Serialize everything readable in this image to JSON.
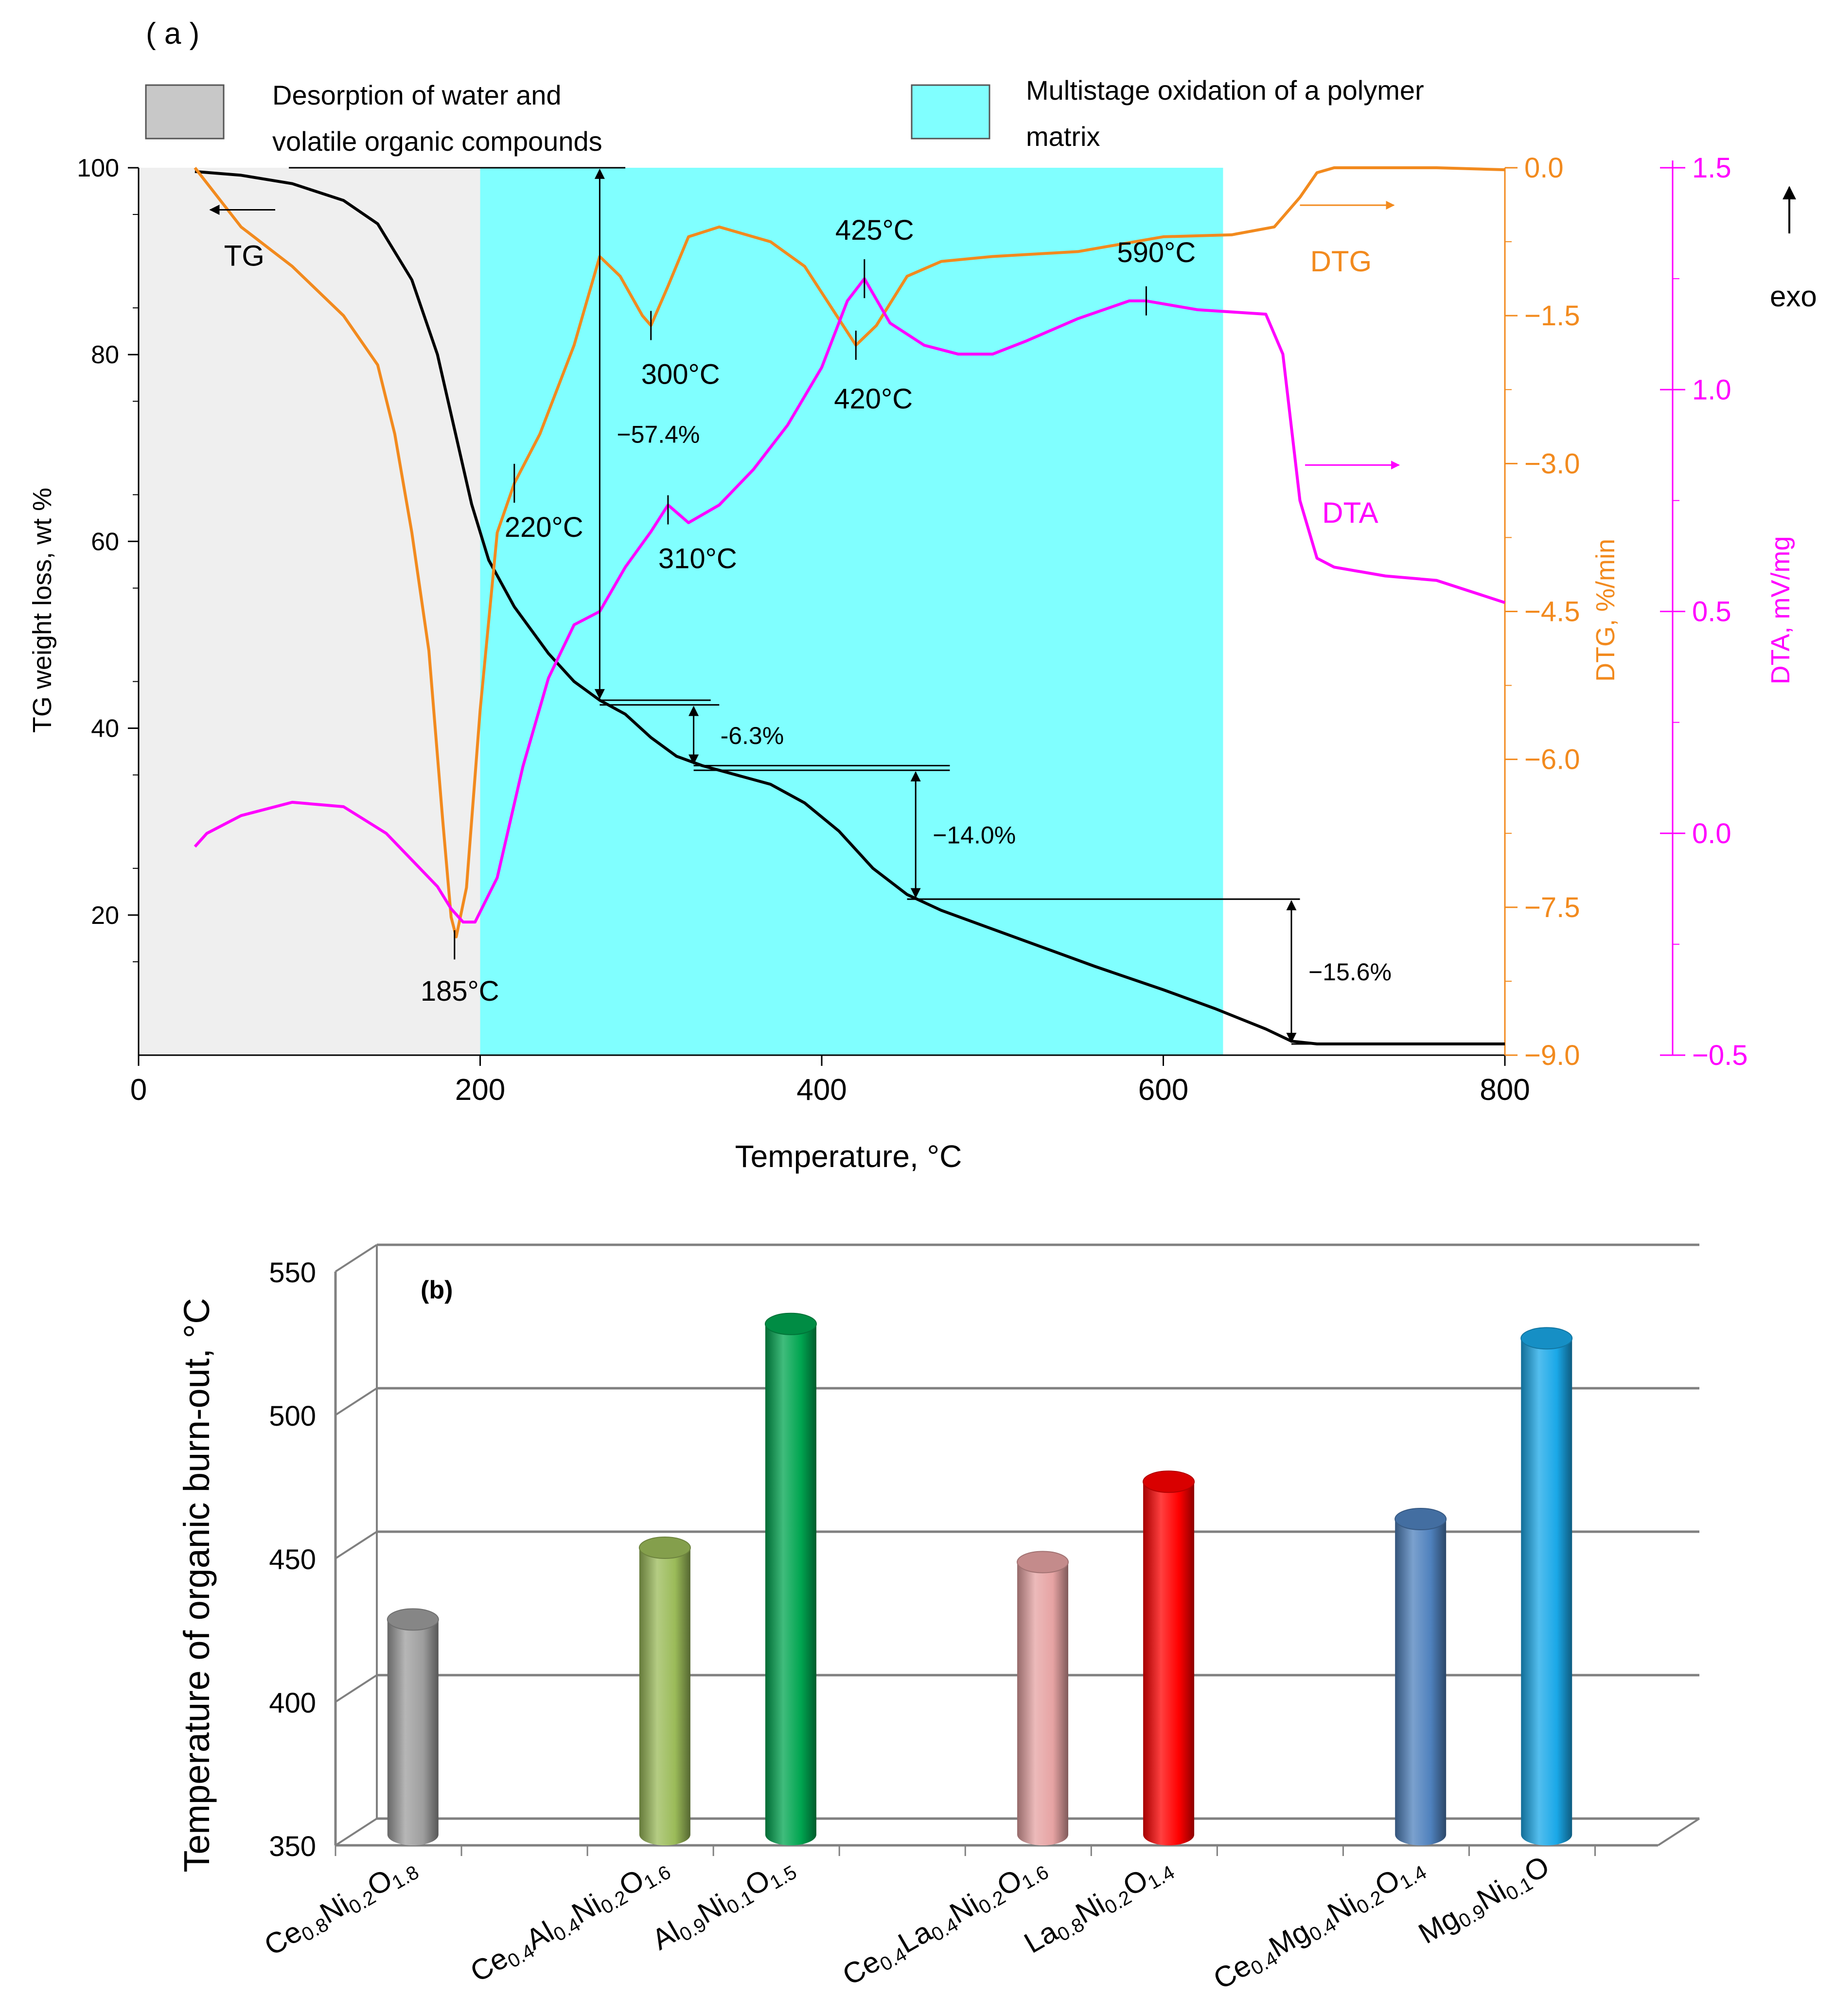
{
  "panel_a": {
    "label": "( a )",
    "legend": [
      {
        "color": "#c8c8c8",
        "line1": "Desorption of water and",
        "line2": "volatile organic compounds"
      },
      {
        "color": "#80ffff",
        "line1": "Multistage oxidation of a polymer",
        "line2": "matrix"
      }
    ],
    "exo_label": "exo"
  },
  "panel_b": {
    "label": "(b)"
  },
  "colors": {
    "tg": "#000000",
    "dtg": "#f28a1e",
    "dta": "#ff00ff",
    "cyan_region": "#80ffff",
    "gray_region": "#efefef"
  },
  "chart_data": [
    {
      "type": "line",
      "title": "( a )",
      "xlabel": "Temperature, °C",
      "xlim": [
        0,
        800
      ],
      "x_ticks": [
        "0",
        "200",
        "400",
        "600",
        "800"
      ],
      "axes": {
        "tg": {
          "label": "TG weight loss, wt %",
          "ylim": [
            5,
            100
          ],
          "ticks": [
            "100",
            "80",
            "60",
            "40",
            "20"
          ]
        },
        "dtg": {
          "label": "DTG, %/min",
          "ylim": [
            -9.0,
            0.0
          ],
          "ticks": [
            "0.0",
            "−1.5",
            "−3.0",
            "−4.5",
            "−6.0",
            "−7.5",
            "−9.0"
          ]
        },
        "dta": {
          "label": "DTA, mV/mg",
          "ylim": [
            -0.5,
            1.5
          ],
          "ticks": [
            "1.5",
            "1.0",
            "0.5",
            "0.0",
            "−0.5"
          ]
        }
      },
      "regions": [
        {
          "name": "Desorption of water and volatile organic compounds",
          "x": [
            0,
            200
          ]
        },
        {
          "name": "Multistage oxidation of a polymer matrix",
          "x": [
            200,
            635
          ]
        }
      ],
      "series": [
        {
          "name": "TG",
          "axis": "tg",
          "label": "TG",
          "points": [
            [
              33,
              99.6
            ],
            [
              60,
              99.2
            ],
            [
              90,
              98.3
            ],
            [
              120,
              96.5
            ],
            [
              140,
              94
            ],
            [
              160,
              88
            ],
            [
              175,
              80
            ],
            [
              185,
              72
            ],
            [
              195,
              64
            ],
            [
              205,
              58
            ],
            [
              220,
              53
            ],
            [
              240,
              48
            ],
            [
              255,
              45
            ],
            [
              270,
              43
            ],
            [
              285,
              41.5
            ],
            [
              300,
              39
            ],
            [
              315,
              37
            ],
            [
              330,
              36
            ],
            [
              350,
              35
            ],
            [
              370,
              34
            ],
            [
              390,
              32
            ],
            [
              410,
              29
            ],
            [
              430,
              25
            ],
            [
              450,
              22.2
            ],
            [
              470,
              20.5
            ],
            [
              500,
              18.5
            ],
            [
              530,
              16.5
            ],
            [
              560,
              14.5
            ],
            [
              600,
              12
            ],
            [
              630,
              10
            ],
            [
              660,
              7.8
            ],
            [
              675,
              6.5
            ],
            [
              690,
              6.2
            ],
            [
              800,
              6.2
            ]
          ]
        },
        {
          "name": "DTG",
          "axis": "dtg",
          "label": "DTG",
          "points": [
            [
              33,
              0
            ],
            [
              60,
              -0.6
            ],
            [
              90,
              -1.0
            ],
            [
              120,
              -1.5
            ],
            [
              140,
              -2.0
            ],
            [
              150,
              -2.7
            ],
            [
              160,
              -3.7
            ],
            [
              170,
              -4.9
            ],
            [
              178,
              -6.6
            ],
            [
              183,
              -7.6
            ],
            [
              186,
              -7.8
            ],
            [
              192,
              -7.3
            ],
            [
              200,
              -5.5
            ],
            [
              210,
              -3.7
            ],
            [
              220,
              -3.2
            ],
            [
              235,
              -2.7
            ],
            [
              255,
              -1.8
            ],
            [
              270,
              -0.9
            ],
            [
              282,
              -1.1
            ],
            [
              295,
              -1.5
            ],
            [
              300,
              -1.6
            ],
            [
              310,
              -1.2
            ],
            [
              322,
              -0.7
            ],
            [
              340,
              -0.6
            ],
            [
              370,
              -0.75
            ],
            [
              390,
              -1.0
            ],
            [
              405,
              -1.4
            ],
            [
              420,
              -1.8
            ],
            [
              432,
              -1.6
            ],
            [
              450,
              -1.1
            ],
            [
              470,
              -0.95
            ],
            [
              500,
              -0.9
            ],
            [
              550,
              -0.85
            ],
            [
              600,
              -0.7
            ],
            [
              640,
              -0.68
            ],
            [
              665,
              -0.6
            ],
            [
              680,
              -0.3
            ],
            [
              690,
              -0.05
            ],
            [
              700,
              0
            ],
            [
              760,
              0
            ],
            [
              800,
              -0.02
            ]
          ]
        },
        {
          "name": "DTA",
          "axis": "dta",
          "label": "DTA",
          "points": [
            [
              33,
              -0.03
            ],
            [
              40,
              0.0
            ],
            [
              60,
              0.04
            ],
            [
              90,
              0.07
            ],
            [
              120,
              0.06
            ],
            [
              145,
              0.0
            ],
            [
              160,
              -0.06
            ],
            [
              175,
              -0.12
            ],
            [
              183,
              -0.17
            ],
            [
              190,
              -0.2
            ],
            [
              197,
              -0.2
            ],
            [
              210,
              -0.1
            ],
            [
              225,
              0.15
            ],
            [
              240,
              0.35
            ],
            [
              255,
              0.47
            ],
            [
              270,
              0.5
            ],
            [
              285,
              0.6
            ],
            [
              300,
              0.68
            ],
            [
              310,
              0.74
            ],
            [
              322,
              0.7
            ],
            [
              340,
              0.74
            ],
            [
              360,
              0.82
            ],
            [
              380,
              0.92
            ],
            [
              400,
              1.05
            ],
            [
              415,
              1.2
            ],
            [
              425,
              1.25
            ],
            [
              440,
              1.15
            ],
            [
              460,
              1.1
            ],
            [
              480,
              1.08
            ],
            [
              500,
              1.08
            ],
            [
              520,
              1.11
            ],
            [
              550,
              1.16
            ],
            [
              580,
              1.2
            ],
            [
              590,
              1.2
            ],
            [
              620,
              1.18
            ],
            [
              660,
              1.17
            ],
            [
              670,
              1.08
            ],
            [
              680,
              0.75
            ],
            [
              690,
              0.62
            ],
            [
              700,
              0.6
            ],
            [
              730,
              0.58
            ],
            [
              760,
              0.57
            ],
            [
              800,
              0.52
            ]
          ]
        }
      ],
      "annotations": [
        {
          "text": "185°C",
          "series": "DTG",
          "x": 185
        },
        {
          "text": "220°C",
          "series": "DTG",
          "x": 220
        },
        {
          "text": "300°C",
          "series": "DTG",
          "x": 300
        },
        {
          "text": "420°C",
          "series": "DTG",
          "x": 420
        },
        {
          "text": "310°C",
          "series": "DTA",
          "x": 310
        },
        {
          "text": "425°C",
          "series": "DTA",
          "x": 425
        },
        {
          "text": "590°C",
          "series": "DTA",
          "x": 590
        }
      ],
      "weight_losses": [
        {
          "text": "−57.4%",
          "x": 270,
          "from": 100,
          "to": 43
        },
        {
          "text": "-6.3%",
          "x": 325,
          "from": 42.5,
          "to": 36
        },
        {
          "text": "−14.0%",
          "x": 455,
          "from": 35.5,
          "to": 21.7
        },
        {
          "text": "−15.6%",
          "x": 675,
          "from": 21.7,
          "to": 6.2
        }
      ]
    },
    {
      "type": "bar",
      "title": "(b)",
      "ylabel": "Temperature of organic burn-out,  °C",
      "ylim": [
        350,
        550
      ],
      "y_ticks": [
        "550",
        "500",
        "450",
        "400",
        "350"
      ],
      "categories": [
        {
          "name": "Ce0.8Ni0.2O1.8",
          "parts": [
            [
              "Ce",
              ""
            ],
            [
              "0.8",
              "sub"
            ],
            [
              "Ni",
              ""
            ],
            [
              "0.2",
              "sub"
            ],
            [
              "O",
              ""
            ],
            [
              "1.8",
              "sub"
            ]
          ]
        },
        {
          "name": "Ce0.4Al0.4Ni0.2O1.6",
          "parts": [
            [
              "Ce",
              ""
            ],
            [
              "0.4",
              "sub"
            ],
            [
              "Al",
              ""
            ],
            [
              "0.4",
              "sub"
            ],
            [
              "Ni",
              ""
            ],
            [
              "0.2",
              "sub"
            ],
            [
              "O",
              ""
            ],
            [
              "1.6",
              "sub"
            ]
          ]
        },
        {
          "name": "Al0.9Ni0.1O1.5",
          "parts": [
            [
              "Al",
              ""
            ],
            [
              "0.9",
              "sub"
            ],
            [
              "Ni",
              ""
            ],
            [
              "0.1",
              "sub"
            ],
            [
              "O",
              ""
            ],
            [
              "1.5",
              "sub"
            ]
          ]
        },
        {
          "name": "Ce0.4La0.4Ni0.2O1.6",
          "parts": [
            [
              "Ce",
              ""
            ],
            [
              "0.4",
              "sub"
            ],
            [
              "La",
              ""
            ],
            [
              "0.4",
              "sub"
            ],
            [
              "Ni",
              ""
            ],
            [
              "0.2",
              "sub"
            ],
            [
              "O",
              ""
            ],
            [
              "1.6",
              "sub"
            ]
          ]
        },
        {
          "name": "La0.8Ni0.2O1.4",
          "parts": [
            [
              "La",
              ""
            ],
            [
              "0.8",
              "sub"
            ],
            [
              "Ni",
              ""
            ],
            [
              "0.2",
              "sub"
            ],
            [
              "O",
              ""
            ],
            [
              "1.4",
              "sub"
            ]
          ]
        },
        {
          "name": "Ce0.4Mg0.4Ni0.2O1.4",
          "parts": [
            [
              "Ce",
              ""
            ],
            [
              "0.4",
              "sub"
            ],
            [
              "Mg",
              ""
            ],
            [
              "0.4",
              "sub"
            ],
            [
              "Ni",
              ""
            ],
            [
              "0.2",
              "sub"
            ],
            [
              "O",
              ""
            ],
            [
              "1.4",
              "sub"
            ]
          ]
        },
        {
          "name": "Mg0.9Ni0.1O",
          "parts": [
            [
              "Mg",
              ""
            ],
            [
              "0.9",
              "sub"
            ],
            [
              "Ni",
              ""
            ],
            [
              "0.1",
              "sub"
            ],
            [
              "O",
              ""
            ]
          ]
        }
      ],
      "bars": [
        {
          "value": 425,
          "slot": 0.5,
          "color": "#9e9e9e"
        },
        {
          "value": 450,
          "slot": 2.5,
          "color": "#9bbb59"
        },
        {
          "value": 528,
          "slot": 3.5,
          "color": "#00a550"
        },
        {
          "value": 445,
          "slot": 5.5,
          "color": "#e6a3a3"
        },
        {
          "value": 473,
          "slot": 6.5,
          "color": "#ff0000"
        },
        {
          "value": 460,
          "slot": 8.5,
          "color": "#4f81bd"
        },
        {
          "value": 523,
          "slot": 9.5,
          "color": "#1aa8e8"
        }
      ]
    }
  ]
}
